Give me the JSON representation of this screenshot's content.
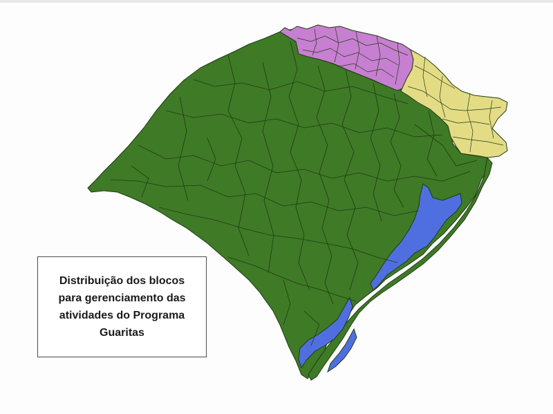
{
  "legend": {
    "lines": [
      "Distribuição dos blocos",
      "para gerenciamento das",
      "atividades do Programa",
      "Guaritas"
    ]
  },
  "map": {
    "colors": {
      "main_block": "#3f7a27",
      "north_block": "#c77fd1",
      "northeast_block": "#e3dc85",
      "lagoons": "#4f6fe0",
      "borders": "#1f3a12"
    }
  }
}
